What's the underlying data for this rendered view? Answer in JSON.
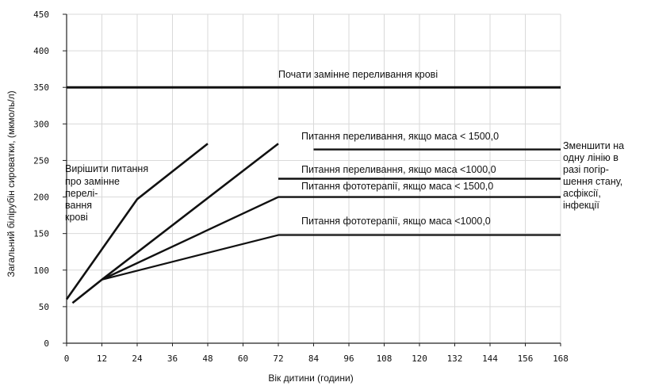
{
  "chart_data": {
    "type": "line",
    "xlabel": "Вік дитини (години)",
    "ylabel": "Загальний білірубін сироватки, (мкмоль/л)",
    "xlim": [
      0,
      168
    ],
    "ylim": [
      0,
      450
    ],
    "x_ticks": [
      "0",
      "12",
      "24",
      "36",
      "48",
      "60",
      "72",
      "84",
      "96",
      "108",
      "120",
      "132",
      "144",
      "156",
      "168"
    ],
    "y_ticks": [
      "0",
      "50",
      "100",
      "150",
      "200",
      "250",
      "300",
      "350",
      "400",
      "450"
    ],
    "grid": true,
    "series": [
      {
        "name": "Почати замінне переливання крові",
        "points": [
          [
            0,
            350
          ],
          [
            168,
            350
          ]
        ],
        "width": 3
      },
      {
        "name": "Питання переливання, якщо маса < 1500,0",
        "points": [
          [
            0,
            60
          ],
          [
            24,
            197
          ],
          [
            48,
            273
          ]
        ],
        "width": 2.6
      },
      {
        "name": "Питання переливання, якщо маса <1000,0",
        "points": [
          [
            2,
            55
          ],
          [
            12,
            87
          ],
          [
            72,
            273
          ]
        ],
        "width": 2.6
      },
      {
        "name": "Питання фототерапії, якщо маса < 1500,0",
        "points": [
          [
            12,
            87
          ],
          [
            72,
            200
          ],
          [
            168,
            200
          ]
        ],
        "width": 2.4
      },
      {
        "name": "Питання фототерапії, якщо маса <1000,0",
        "points": [
          [
            12,
            87
          ],
          [
            72,
            148
          ],
          [
            168,
            148
          ]
        ],
        "width": 2.2
      },
      {
        "name": "",
        "points": [
          [
            84,
            265
          ],
          [
            168,
            265
          ]
        ],
        "width": 2.4
      },
      {
        "name": "",
        "points": [
          [
            72,
            225
          ],
          [
            168,
            225
          ]
        ],
        "width": 2.4
      }
    ],
    "annotations": {
      "exchange": "Почати замінне переливання крові",
      "label_1500_transfusion": "Питання переливання, якщо маса < 1500,0",
      "label_1000_transfusion": "Питання переливання, якщо маса <1000,0",
      "label_1500_photo": "Питання фототерапії, якщо маса < 1500,0",
      "label_1000_photo": "Питання фототерапії, якщо маса <1000,0",
      "decide_lines": [
        "Вирішити питання",
        "про замінне",
        "перелі-",
        "вання",
        "крові"
      ],
      "reduce_lines": [
        "Зменшити на",
        "одну лінію в",
        "разі погір-",
        "шення стану,",
        "асфіксії,",
        "інфекції"
      ]
    }
  }
}
